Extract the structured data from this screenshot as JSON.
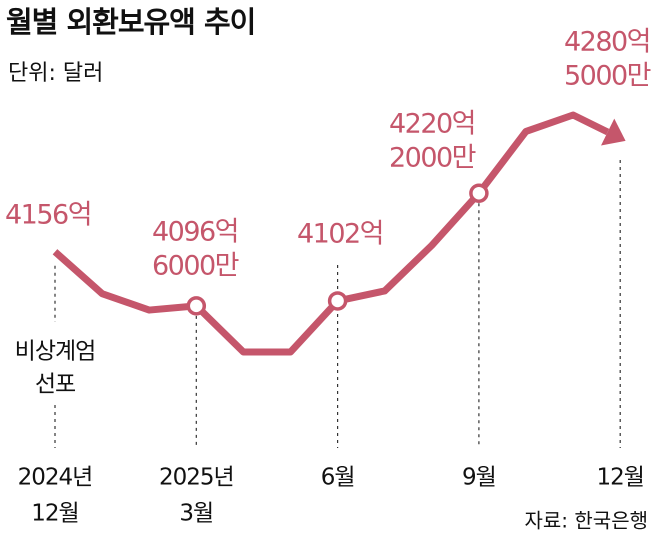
{
  "chart_data": {
    "type": "line",
    "title": "월별 외환보유액 추이",
    "subtitle": "단위: 달러",
    "source": "자료: 한국은행",
    "annotation": [
      "비상계엄",
      "선포"
    ],
    "color": "#c5566b",
    "categories": [
      [
        "2024년",
        "12월"
      ],
      null,
      null,
      [
        "2025년",
        "3월"
      ],
      null,
      null,
      [
        "6월"
      ],
      null,
      null,
      [
        "9월"
      ],
      null,
      null,
      [
        "12월"
      ]
    ],
    "values": [
      4156,
      4110,
      4092,
      4096.6,
      4046,
      4046,
      4102,
      4113,
      4163,
      4220.2,
      4288,
      4306,
      4280.5
    ],
    "value_labels": [
      [
        "4156억"
      ],
      null,
      null,
      [
        "4096억",
        "6000만"
      ],
      null,
      null,
      [
        "4102억"
      ],
      null,
      null,
      [
        "4220억",
        "2000만"
      ],
      null,
      null,
      [
        "4280억",
        "5000만"
      ]
    ],
    "markers": [
      3,
      6,
      9
    ]
  }
}
